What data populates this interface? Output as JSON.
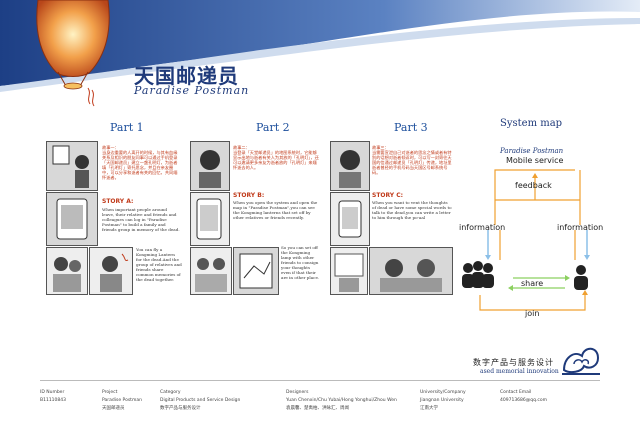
{
  "header": {
    "title_cn": "天国邮递员",
    "title_en": "Paradise Postman"
  },
  "parts": [
    {
      "title": "Part 1",
      "caption_cn": "故事一：\n当身边重要的人离开的时候，与其有血缘关系及相识的朋友同事可以通过手机登录「天国邮递员」建立一盏孔明灯，为逝者填「孔明灯」寄托思念，并且在亲友圈中，可以分享和逝者有关的回忆，共同缅怀逝者。",
      "story_title": "STORY A:",
      "story_body": "When important people around leave, their relative and friends and colleagues can log in \"Paradise Postman\" to build a family and friends group in memory of the dead.",
      "bottom_text": "You can fly a Kongming Lantern for the dead.And the group of relatives and friends share common memories of the dead together."
    },
    {
      "title": "Part 2",
      "caption_cn": "故事二：\n当登录「天堂邮递员」的地图系统时，它能够显示出地与逝者有关人为其放的「孔明灯」，还可以邀请更多亲友为逝者放的「孔明灯」来缅怀逝去的人。",
      "story_title": "STORY B:",
      "story_body": "When you open the system and open the map in \"Paradise Postman\",you can see the Kongming lanterns that set off by other relatives or friends recently.",
      "bottom_text": "So you can set off the Kongming lamp with other friends to consign your thoughts even if that their are in other place."
    },
    {
      "title": "Part 3",
      "caption_cn": "故事三：\n当需要宣泄自己对逝者的思念之情或者有特别的话想对逝者倾诉时，可以写一封寄往天国的信通过邮递员「孔明灯」传递，地址里逝者曾经的手机号码当天国区号邮系统号码。",
      "story_title": "STORY C:",
      "story_body": "When you want to vent the thoughts of dead or have some special words to talk to the dead,you can write a letter to him through the po-aal"
    }
  ],
  "system_map": {
    "title": "System map",
    "logo_text": "Paradise Postman",
    "service": "Mobile service",
    "feedback": "feedback",
    "information_left": "information",
    "information_right": "information",
    "share": "share",
    "join": "join"
  },
  "brand": {
    "cn": "数字产品与服务设计",
    "en": "ased memorial innovation"
  },
  "footer": [
    {
      "label": "ID Number",
      "value": "B11110843"
    },
    {
      "label": "Project",
      "value": "Paradise Postman",
      "value2": "天国邮递员"
    },
    {
      "label": "Category",
      "value": "Digital Products and Service Design",
      "value2": "数字产品与服务设计"
    },
    {
      "label": "Designers",
      "value": "Yuan Chenxin/Chu Yubai/Hong Yonghui/Zhou Wen",
      "value2": "袁晨馨、楚禹柏、洪咏汇、周闻"
    },
    {
      "label": "University/Company",
      "value": "Jiangnan University",
      "value2": "江南大学"
    },
    {
      "label": "Contact Email",
      "value": "409713686@qq.com"
    }
  ],
  "colors": {
    "brand_blue": "#1f3a7a",
    "story_red": "#c03a1a",
    "arrow_orange": "#f0a030",
    "arrow_blue": "#8cc0e8",
    "arrow_green": "#8cd060"
  }
}
